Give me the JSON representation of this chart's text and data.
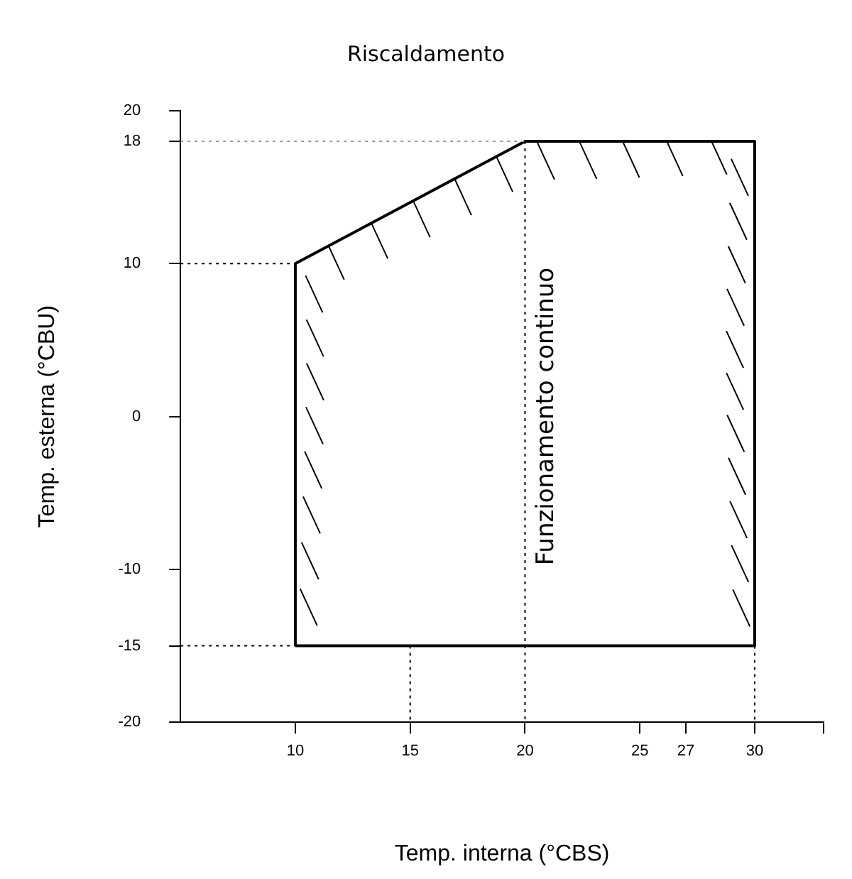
{
  "chart_data": {
    "type": "line",
    "title": "Riscaldamento",
    "xlabel": "Temp. interna (°CBS)",
    "ylabel": "Temp. esterna (°CBU)",
    "xlim": [
      5,
      33
    ],
    "xticks": [
      10,
      15,
      20,
      25,
      27,
      30,
      {
        "value": 33,
        "label": null
      }
    ],
    "ylim": [
      -20,
      20
    ],
    "yticks": [
      -20,
      -15,
      -10,
      0,
      10,
      18,
      20
    ],
    "grid": false,
    "legend": false,
    "marker": "none",
    "series": [
      {
        "color": "#000000",
        "line_style": "solid",
        "x": [
          10,
          10,
          20,
          30,
          30
        ],
        "values": [
          -15,
          10,
          18,
          18,
          -15
        ]
      },
      {
        "color": "#000000",
        "line_style": "solid",
        "x": [
          10,
          30
        ],
        "values": [
          -15,
          -15
        ]
      },
      {
        "color": "#999999",
        "line_style": "dotted",
        "x": [
          5,
          20
        ],
        "values": [
          18,
          18
        ]
      },
      {
        "color": "#000000",
        "line_style": "dotted",
        "x": [
          5,
          10
        ],
        "values": [
          10,
          10
        ]
      },
      {
        "color": "#000000",
        "line_style": "dotted",
        "x": [
          5,
          10
        ],
        "values": [
          -15,
          -15
        ]
      },
      {
        "color": "#000000",
        "line_style": "dotted",
        "x": [
          15,
          15
        ],
        "values": [
          -15,
          -20
        ]
      },
      {
        "color": "#000000",
        "line_style": "dotted",
        "x": [
          20,
          20
        ],
        "values": [
          18,
          -20
        ]
      },
      {
        "color": "#000000",
        "line_style": "dotted",
        "x": [
          30,
          30
        ],
        "values": [
          -15,
          -20
        ]
      }
    ],
    "annotations": [
      "Funzionamento continuo"
    ]
  }
}
